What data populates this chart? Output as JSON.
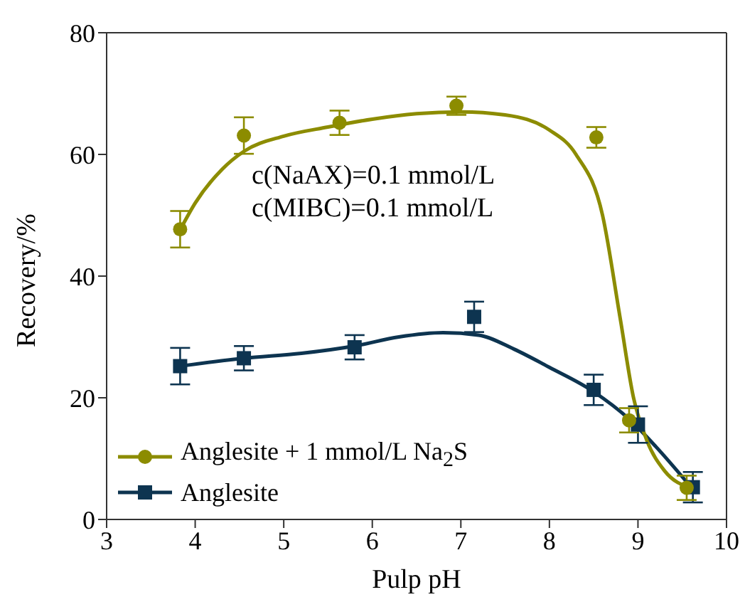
{
  "chart_data": {
    "type": "scatter",
    "xlabel": "Pulp pH",
    "ylabel": "Recovery/%",
    "xlim": [
      3,
      10
    ],
    "xticks": [
      3,
      4,
      5,
      6,
      7,
      8,
      9,
      10
    ],
    "ylim": [
      0,
      80
    ],
    "yticks": [
      0,
      20,
      40,
      60,
      80
    ],
    "grid": false,
    "legend": "bottom left",
    "annotations": [
      "c(NaAX)=0.1 mmol/L",
      "c(MIBC)=0.1 mmol/L"
    ],
    "series": [
      {
        "name": "Anglesite + 1 mmol/L Na$_{2}$S",
        "color": "#8c8c00",
        "marker": "circle",
        "x": [
          3.83,
          4.55,
          5.63,
          6.95,
          8.53,
          8.9,
          9.55
        ],
        "values": [
          47.7,
          63.1,
          65.2,
          68,
          62.8,
          16.3,
          5.2
        ],
        "errors": [
          3,
          3,
          2,
          1.5,
          1.7,
          2,
          2
        ]
      },
      {
        "name": "Anglesite",
        "color": "#0d3450",
        "marker": "square",
        "x": [
          3.83,
          4.55,
          5.8,
          7.15,
          8.5,
          9.0,
          9.62
        ],
        "values": [
          25.2,
          26.5,
          28.3,
          33.3,
          21.3,
          15.6,
          5.3
        ],
        "errors": [
          3,
          2,
          2,
          2.5,
          2.5,
          3,
          2.5
        ]
      },
      {
        "type": "line",
        "color": "#8c8c00",
        "marker": "none",
        "x": [
          3.83,
          4,
          4.3,
          4.55,
          5,
          5.5,
          6,
          6.5,
          7,
          7.5,
          8,
          8.3,
          8.6,
          8.8,
          8.95,
          9.1,
          9.3,
          9.6
        ],
        "values": [
          47.6,
          52,
          57.5,
          60.5,
          63,
          64.5,
          65.8,
          66.7,
          67,
          66.5,
          64,
          60,
          50,
          33,
          20,
          13,
          8,
          5.2
        ]
      },
      {
        "type": "line",
        "color": "#0d3450",
        "marker": "none",
        "x": [
          3.83,
          4.55,
          5.2,
          5.8,
          6.3,
          6.8,
          7.2,
          7.6,
          8,
          8.5,
          8.9,
          9.2,
          9.6
        ],
        "values": [
          25.2,
          26.5,
          27.3,
          28.5,
          30,
          30.7,
          30.3,
          28,
          25,
          21,
          16.5,
          12,
          5.3
        ]
      }
    ]
  }
}
